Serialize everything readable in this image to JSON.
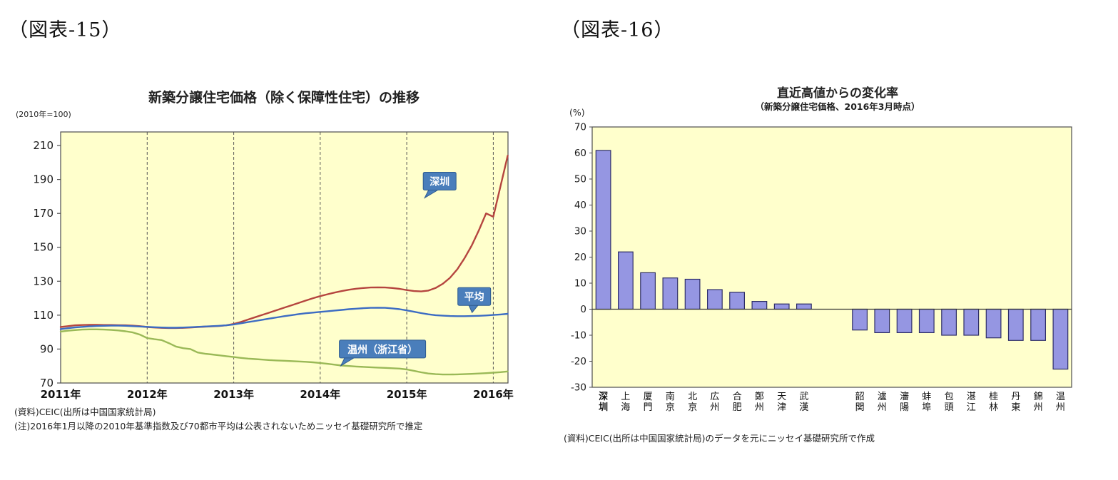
{
  "figure15": {
    "label": "（図表-15）",
    "title": "新築分譲住宅価格（除く保障性住宅）の推移",
    "unit_label": "(2010年=100)",
    "notes": [
      "(資料)CEIC(出所は中国国家統計局)",
      "(注)2016年1月以降の2010年基準指数及び70都市平均は公表されないためニッセイ基礎研究所で推定"
    ]
  },
  "figure16": {
    "label": "（図表-16）",
    "title": "直近高値からの変化率",
    "subtitle": "（新築分譲住宅価格、2016年3月時点）",
    "unit_label": "(%)",
    "note": "(資料)CEIC(出所は中国国家統計局)のデータを元にニッセイ基礎研究所で作成"
  },
  "chart_data": [
    {
      "type": "line",
      "title": "新築分譲住宅価格（除く保障性住宅）の推移",
      "unit_label": "(2010年=100)",
      "xlim": [
        2011,
        2016.17
      ],
      "ylim": [
        70,
        218
      ],
      "y_ticks": [
        70,
        90,
        110,
        130,
        150,
        170,
        190,
        210
      ],
      "x_ticks": [
        2011,
        2012,
        2013,
        2014,
        2015,
        2016
      ],
      "x_tick_labels": [
        "2011年",
        "2012年",
        "2013年",
        "2014年",
        "2015年",
        "2016年"
      ],
      "grid_years": [
        2012,
        2013,
        2014,
        2015,
        2016
      ],
      "plot_bg": "#ffffcc",
      "x_start": 2011,
      "x_step_per_year": 12,
      "series": [
        {
          "name": "深圳",
          "color": "#b5453f",
          "values": [
            103,
            103.5,
            104,
            104.2,
            104.3,
            104.3,
            104.2,
            104.2,
            104.1,
            104,
            103.8,
            103.5,
            103,
            102.7,
            102.5,
            102.4,
            102.4,
            102.5,
            102.7,
            103,
            103.2,
            103.4,
            103.6,
            104,
            104.8,
            106,
            107.4,
            108.8,
            110.2,
            111.6,
            113,
            114.4,
            115.8,
            117.2,
            118.6,
            120,
            121.2,
            122.3,
            123.3,
            124.2,
            125,
            125.6,
            126,
            126.3,
            126.4,
            126.3,
            126,
            125.5,
            124.8,
            124.2,
            124,
            124.5,
            126,
            128.5,
            132,
            137,
            143.5,
            151,
            160,
            170,
            168,
            186,
            204
          ]
        },
        {
          "name": "平均",
          "color": "#3c6cc3",
          "values": [
            101.8,
            102.3,
            102.8,
            103.1,
            103.4,
            103.6,
            103.7,
            103.8,
            103.8,
            103.7,
            103.5,
            103.3,
            103.1,
            102.9,
            102.7,
            102.6,
            102.6,
            102.7,
            102.9,
            103.1,
            103.3,
            103.5,
            103.7,
            104,
            104.5,
            105.2,
            105.9,
            106.6,
            107.3,
            108,
            108.7,
            109.4,
            110,
            110.6,
            111.1,
            111.5,
            111.9,
            112.3,
            112.7,
            113.1,
            113.5,
            113.8,
            114.1,
            114.3,
            114.4,
            114.3,
            114,
            113.5,
            112.8,
            112,
            111.2,
            110.5,
            110,
            109.7,
            109.5,
            109.4,
            109.4,
            109.5,
            109.6,
            109.8,
            110.1,
            110.4,
            110.8
          ]
        },
        {
          "name": "温州（浙江省）",
          "color": "#9ab957",
          "values": [
            100.3,
            100.8,
            101.2,
            101.5,
            101.6,
            101.6,
            101.5,
            101.3,
            101,
            100.5,
            99.8,
            98.5,
            96.5,
            95.8,
            95.3,
            93.5,
            91.5,
            90.5,
            90,
            88,
            87.3,
            86.8,
            86.3,
            85.8,
            85.3,
            84.8,
            84.4,
            84.1,
            83.8,
            83.5,
            83.3,
            83.1,
            82.9,
            82.7,
            82.5,
            82.2,
            81.8,
            81.3,
            80.8,
            80.3,
            80,
            79.7,
            79.5,
            79.3,
            79.1,
            78.9,
            78.7,
            78.5,
            78,
            77.2,
            76.3,
            75.6,
            75.2,
            75,
            75,
            75.1,
            75.2,
            75.4,
            75.6,
            75.8,
            76.1,
            76.4,
            76.8
          ]
        }
      ],
      "annotations": [
        {
          "text": "深圳",
          "x": 2015.38,
          "y": 189,
          "pointer": "down-left"
        },
        {
          "text": "平均",
          "x": 2015.78,
          "y": 121,
          "pointer": "down"
        },
        {
          "text": "温州（浙江省）",
          "x": 2014.72,
          "y": 90,
          "pointer": "down-left"
        }
      ],
      "annotation_style": {
        "fill": "#4a7ebb",
        "stroke": "#2e5b8f",
        "text_color": "#ffffff"
      },
      "source_notes": [
        "(資料)CEIC(出所は中国国家統計局)",
        "(注)2016年1月以降の2010年基準指数及び70都市平均は公表されないためニッセイ基礎研究所で推定"
      ]
    },
    {
      "type": "bar",
      "title": "直近高値からの変化率",
      "subtitle": "（新築分譲住宅価格、2016年3月時点）",
      "unit_label": "(%)",
      "ylim": [
        -30,
        70
      ],
      "y_ticks": [
        70,
        60,
        50,
        40,
        30,
        20,
        10,
        0,
        -10,
        -20,
        -30
      ],
      "categories": [
        "深圳",
        "上海",
        "厦門",
        "南京",
        "北京",
        "広州",
        "合肥",
        "鄭州",
        "天津",
        "武漢",
        "韶関",
        "瀘州",
        "瀋陽",
        "蚌埠",
        "包頭",
        "湛江",
        "桂林",
        "丹東",
        "錦州",
        "温州"
      ],
      "values": [
        61,
        22,
        14,
        12,
        11.5,
        7.5,
        6.5,
        3,
        2,
        2,
        -8,
        -9,
        -9,
        -9,
        -10,
        -10,
        -11,
        -12,
        -12,
        -23
      ],
      "bold_categories": [
        0
      ],
      "gap_after_index": 9,
      "plot_bg": "#ffffcc",
      "bar_fill": "#9596e2",
      "bar_stroke": "#2d2d66",
      "source_note": "(資料)CEIC(出所は中国国家統計局)のデータを元にニッセイ基礎研究所で作成"
    }
  ]
}
